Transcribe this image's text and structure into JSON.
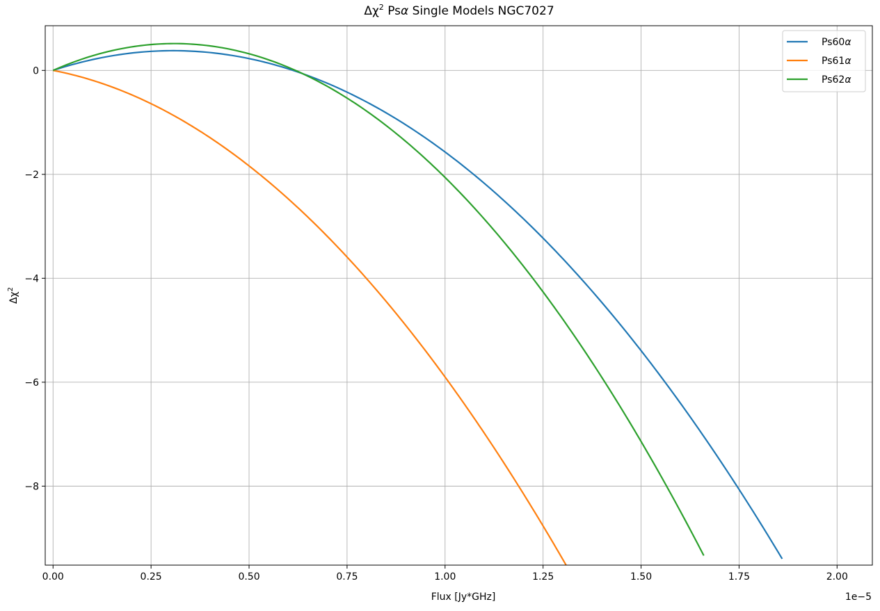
{
  "chart_data": {
    "type": "line",
    "title": {
      "prefix": "Δχ",
      "sup": "2",
      "rest1": " Ps",
      "alpha": "α",
      "rest2": " Single Models NGC7027"
    },
    "xlabel": "Flux [Jy*GHz]",
    "ylabel": {
      "text": "Δχ",
      "sup": "2"
    },
    "x_offset_text": "1e−5",
    "xlim": [
      -0.02,
      2.09
    ],
    "ylim": [
      -9.52,
      0.86
    ],
    "x_ticks": [
      0.0,
      0.25,
      0.5,
      0.75,
      1.0,
      1.25,
      1.5,
      1.75,
      2.0
    ],
    "x_tick_labels": [
      "0.00",
      "0.25",
      "0.50",
      "0.75",
      "1.00",
      "1.25",
      "1.50",
      "1.75",
      "2.00"
    ],
    "y_ticks": [
      0,
      -2,
      -4,
      -6,
      -8
    ],
    "y_tick_labels": [
      "0",
      "−2",
      "−4",
      "−6",
      "−8"
    ],
    "grid": true,
    "legend_position": "top-right",
    "series": [
      {
        "name": "Ps60α",
        "name_prefix": "Ps60",
        "name_alpha": "α",
        "color": "#1f77b4",
        "a": 2.48,
        "b": -4.05,
        "x_start": 0.0,
        "x_end": 1.86
      },
      {
        "name": "Ps61α",
        "name_prefix": "Ps61",
        "name_alpha": "α",
        "color": "#ff7f0e",
        "a": -1.45,
        "b": -4.45,
        "x_start": 0.0,
        "x_end": 1.31
      },
      {
        "name": "Ps62α",
        "name_prefix": "Ps62",
        "name_alpha": "α",
        "color": "#2ca02c",
        "a": 3.34,
        "b": -5.4,
        "x_start": 0.0,
        "x_end": 1.66
      }
    ]
  }
}
